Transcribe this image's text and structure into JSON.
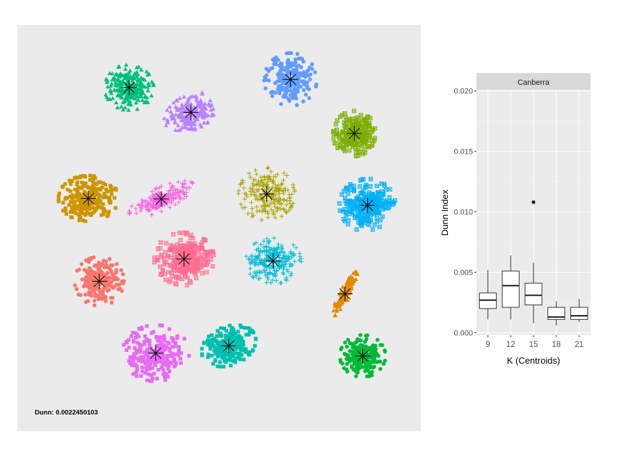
{
  "chart_data": [
    {
      "type": "scatter",
      "title": "",
      "annotation": "Dunn: 0.0022450103",
      "background": "#ebebeb",
      "xlim": [
        0,
        1
      ],
      "ylim": [
        0,
        1
      ],
      "grid": false,
      "legend": "none",
      "clusters": [
        {
          "color": "#00BF7D",
          "marker": "triangle",
          "center": [
            0.277,
            0.846
          ],
          "n": 240
        },
        {
          "color": "#B983FF",
          "marker": "triangle",
          "center": [
            0.43,
            0.785
          ],
          "n": 200
        },
        {
          "color": "#619CFF",
          "marker": "circle",
          "center": [
            0.677,
            0.866
          ],
          "n": 240
        },
        {
          "color": "#7CAE00",
          "marker": "boxx",
          "center": [
            0.835,
            0.733
          ],
          "n": 220
        },
        {
          "color": "#CD9600",
          "marker": "square",
          "center": [
            0.176,
            0.573
          ],
          "n": 260
        },
        {
          "color": "#F564E3",
          "marker": "plus",
          "center": [
            0.357,
            0.572
          ],
          "n": 200
        },
        {
          "color": "#ABA300",
          "marker": "plus",
          "center": [
            0.618,
            0.584
          ],
          "n": 220
        },
        {
          "color": "#00B0F6",
          "marker": "boxx",
          "center": [
            0.868,
            0.556
          ],
          "n": 260
        },
        {
          "color": "#F8766D",
          "marker": "circle",
          "center": [
            0.203,
            0.369
          ],
          "n": 200
        },
        {
          "color": "#FF6C91",
          "marker": "boxx",
          "center": [
            0.413,
            0.424
          ],
          "n": 260
        },
        {
          "color": "#00BCD8",
          "marker": "plus",
          "center": [
            0.634,
            0.419
          ],
          "n": 240
        },
        {
          "color": "#E38900",
          "marker": "triangle",
          "center": [
            0.812,
            0.338
          ],
          "n": 110
        },
        {
          "color": "#E76BF3",
          "marker": "square",
          "center": [
            0.343,
            0.192
          ],
          "n": 240
        },
        {
          "color": "#00C0AF",
          "marker": "square",
          "center": [
            0.524,
            0.21
          ],
          "n": 240
        },
        {
          "color": "#00BA38",
          "marker": "circle",
          "center": [
            0.856,
            0.185
          ],
          "n": 220
        }
      ]
    },
    {
      "type": "box",
      "facet_label": "Canberra",
      "xlabel": "K (Centroids)",
      "ylabel": "Dunn Index",
      "ylim": [
        -0.0002,
        0.0201
      ],
      "yticks": [
        0.0,
        0.005,
        0.01,
        0.015,
        0.02
      ],
      "ytick_labels": [
        "0.000",
        "0.005",
        "0.010",
        "0.015",
        "0.020"
      ],
      "categories": [
        "9",
        "12",
        "15",
        "18",
        "21"
      ],
      "boxes": [
        {
          "k": "9",
          "whisker_low": 0.0011,
          "q1": 0.002,
          "median": 0.0027,
          "q3": 0.0033,
          "whisker_high": 0.0052,
          "outliers": []
        },
        {
          "k": "12",
          "whisker_low": 0.0011,
          "q1": 0.0021,
          "median": 0.0039,
          "q3": 0.0051,
          "whisker_high": 0.0064,
          "outliers": []
        },
        {
          "k": "15",
          "whisker_low": 0.0008,
          "q1": 0.0023,
          "median": 0.0031,
          "q3": 0.0041,
          "whisker_high": 0.0058,
          "outliers": [
            0.0108
          ]
        },
        {
          "k": "18",
          "whisker_low": 0.0006,
          "q1": 0.0011,
          "median": 0.0013,
          "q3": 0.0021,
          "whisker_high": 0.0026,
          "outliers": []
        },
        {
          "k": "21",
          "whisker_low": 0.0009,
          "q1": 0.0011,
          "median": 0.0014,
          "q3": 0.0021,
          "whisker_high": 0.0028,
          "outliers": []
        }
      ]
    }
  ]
}
